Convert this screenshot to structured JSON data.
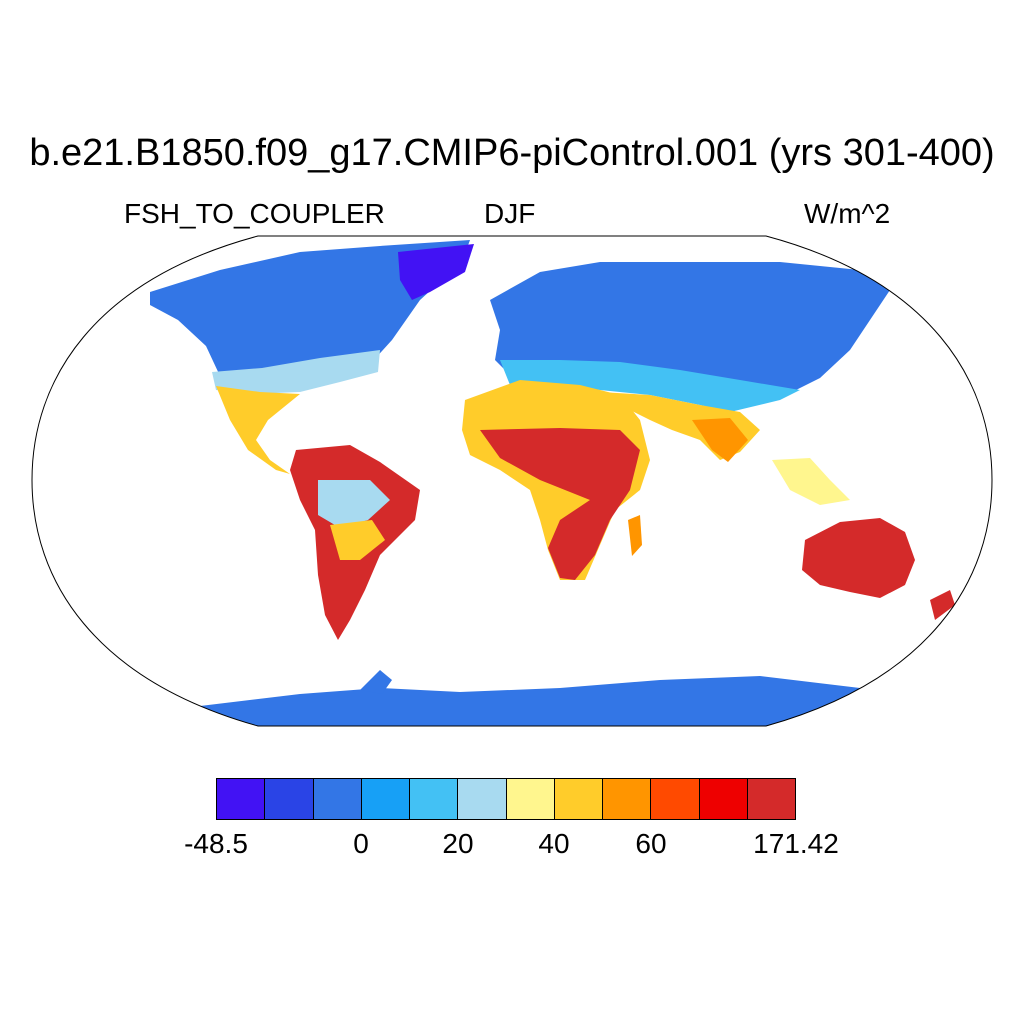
{
  "title": "b.e21.B1850.f09_g17.CMIP6-piControl.001 (yrs 301-400)",
  "variable": "FSH_TO_COUPLER",
  "season": "DJF",
  "units": "W/m^2",
  "colorbar": {
    "colors": [
      "#4212f4",
      "#2a44e6",
      "#3376e6",
      "#17a0f6",
      "#43c1f4",
      "#a8daf0",
      "#fff68e",
      "#ffcc2a",
      "#ff9500",
      "#ff4a00",
      "#ee0000",
      "#d42a2a"
    ],
    "labels": [
      "-48.5",
      "0",
      "20",
      "40",
      "60",
      "171.42"
    ]
  },
  "land_color": "#3376e6",
  "ocean_color": "#ffffff"
}
